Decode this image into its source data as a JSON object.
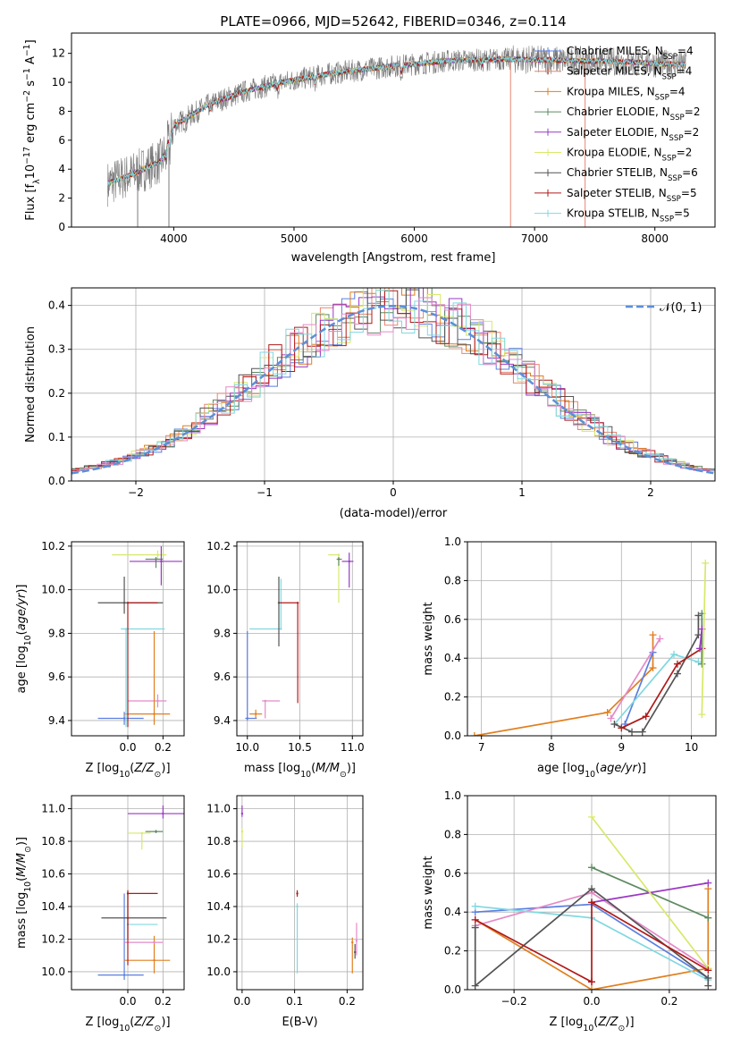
{
  "figure": {
    "title": "PLATE=0966, MJD=52642, FIBERID=0346, z=0.114"
  },
  "legend_entries": [
    {
      "label": "Chabrier MILES, N_SSP=4",
      "color": "#5b7fe0"
    },
    {
      "label": "Salpeter MILES, N_SSP=4",
      "color": "#e8856f"
    },
    {
      "label": "Kroupa MILES, N_SSP=4",
      "color": "#e07f1f"
    },
    {
      "label": "Chabrier ELODIE, N_SSP=2",
      "color": "#5e8a62"
    },
    {
      "label": "Salpeter ELODIE, N_SSP=2",
      "color": "#9a38c4"
    },
    {
      "label": "Kroupa ELODIE, N_SSP=2",
      "color": "#d8e86a"
    },
    {
      "label": "Chabrier STELIB, N_SSP=6",
      "color": "#545454"
    },
    {
      "label": "Salpeter STELIB, N_SSP=5",
      "color": "#b01a1a"
    },
    {
      "label": "Kroupa STELIB, N_SSP=5",
      "color": "#80d8e0"
    }
  ],
  "chart_data": [
    {
      "id": "spectrum",
      "type": "line",
      "xlabel": "wavelength [Angstrom, rest frame]",
      "ylabel": "Flux [f_λ 10^-17 erg cm^-2 s^-1 A^-1]",
      "xlim": [
        3150,
        8500
      ],
      "ylim": [
        0,
        13.4
      ],
      "xticks": [
        4000,
        5000,
        6000,
        7000,
        8000
      ],
      "yticks": [
        0,
        2,
        4,
        6,
        8,
        10,
        12
      ],
      "grid": false,
      "legend_position": "right",
      "x_range_data": [
        3450,
        8260
      ],
      "continuum": [
        [
          3450,
          3.0
        ],
        [
          3700,
          3.8
        ],
        [
          3900,
          4.6
        ],
        [
          4000,
          7.0
        ],
        [
          4300,
          8.5
        ],
        [
          4600,
          9.4
        ],
        [
          4900,
          10.0
        ],
        [
          5300,
          10.6
        ],
        [
          5800,
          11.1
        ],
        [
          6300,
          11.5
        ],
        [
          6800,
          11.6
        ],
        [
          7300,
          11.5
        ],
        [
          7800,
          11.4
        ],
        [
          8260,
          11.2
        ]
      ],
      "series": [
        {
          "color": "#7a7a7a",
          "role": "data"
        },
        {
          "color": "#5b7fe0"
        },
        {
          "color": "#e8856f"
        },
        {
          "color": "#e07f1f"
        },
        {
          "color": "#5e8a62"
        },
        {
          "color": "#9a38c4"
        },
        {
          "color": "#d8e86a"
        },
        {
          "color": "#545454"
        },
        {
          "color": "#b01a1a"
        },
        {
          "color": "#80d8e0"
        }
      ]
    },
    {
      "id": "residuals",
      "type": "area",
      "xlabel": "(data-model)/error",
      "ylabel": "Normed distribution",
      "xlim": [
        -2.5,
        2.5
      ],
      "ylim": [
        0,
        0.44
      ],
      "xticks": [
        -2,
        -1,
        0,
        1,
        2
      ],
      "xtick_labels": [
        "−2",
        "−1",
        "0",
        "1",
        "2"
      ],
      "yticks": [
        0.0,
        0.1,
        0.2,
        0.3,
        0.4
      ],
      "grid": true,
      "legend": "𝒩(0, 1)",
      "legend_position": "top-right",
      "normal_curve_color": "#5b8fd8",
      "histogram_colors": [
        "#5b7fe0",
        "#e8856f",
        "#e07f1f",
        "#5e8a62",
        "#9a38c4",
        "#d8e86a",
        "#545454",
        "#b01a1a",
        "#80d8e0",
        "#e38ac8"
      ],
      "bin_width": 0.1
    },
    {
      "id": "age_vs_Z",
      "type": "scatter",
      "xlabel": "Z [log10(Z/Z⊙)]",
      "ylabel": "age  [log10(age/yr)]",
      "xlim": [
        -0.32,
        0.32
      ],
      "ylim": [
        9.33,
        10.22
      ],
      "xticks": [
        0.0,
        0.2
      ],
      "yticks": [
        9.4,
        9.6,
        9.8,
        10.0,
        10.2
      ],
      "grid": true,
      "points": [
        {
          "x": -0.02,
          "y": 9.41,
          "xerr": [
            0.15,
            0.11
          ],
          "yerr": [
            0.03,
            0.03
          ],
          "color": "#5b7fe0"
        },
        {
          "x": 0.17,
          "y": 9.49,
          "xerr": [
            0.17,
            0.05
          ],
          "yerr": [
            0.03,
            0.03
          ],
          "color": "#e38ac8"
        },
        {
          "x": 0.15,
          "y": 9.43,
          "xerr": [
            0.17,
            0.09
          ],
          "yerr": [
            0.05,
            0.38
          ],
          "color": "#e07f1f"
        },
        {
          "x": -0.01,
          "y": 9.82,
          "xerr": [
            0.03,
            0.22
          ],
          "yerr": [
            0.45,
            0.0
          ],
          "color": "#80d8e0"
        },
        {
          "x": -0.02,
          "y": 9.94,
          "xerr": [
            0.15,
            0.22
          ],
          "yerr": [
            0.05,
            0.12
          ],
          "color": "#545454"
        },
        {
          "x": 0.0,
          "y": 9.94,
          "xerr": [
            0.0,
            0.17
          ],
          "yerr": [
            0.57,
            0.0
          ],
          "color": "#b01a1a"
        },
        {
          "x": 0.17,
          "y": 10.16,
          "xerr": [
            0.26,
            0.05
          ],
          "yerr": [
            0.02,
            0.02
          ],
          "color": "#d8e86a"
        },
        {
          "x": 0.16,
          "y": 10.14,
          "xerr": [
            0.06,
            0.04
          ],
          "yerr": [
            0.04,
            0.01
          ],
          "color": "#5e8a62"
        },
        {
          "x": 0.19,
          "y": 10.13,
          "xerr": [
            0.18,
            0.12
          ],
          "yerr": [
            0.11,
            0.07
          ],
          "color": "#9a38c4"
        }
      ]
    },
    {
      "id": "age_vs_mass",
      "type": "scatter",
      "xlabel": "mass [log10(M/M⊙)]",
      "ylabel": "",
      "xlim": [
        9.9,
        11.1
      ],
      "ylim": [
        9.33,
        10.22
      ],
      "xticks": [
        10.0,
        10.5,
        11.0
      ],
      "yticks": [
        9.4,
        9.6,
        9.8,
        10.0,
        10.2
      ],
      "grid": true,
      "points": [
        {
          "x": 10.0,
          "y": 9.41,
          "xerr": [
            0.02,
            0.09
          ],
          "yerr": [
            0.01,
            0.4
          ],
          "color": "#5b7fe0"
        },
        {
          "x": 10.08,
          "y": 9.43,
          "xerr": [
            0.06,
            0.06
          ],
          "yerr": [
            0.02,
            0.02
          ],
          "color": "#e07f1f"
        },
        {
          "x": 10.17,
          "y": 9.49,
          "xerr": [
            0.03,
            0.14
          ],
          "yerr": [
            0.08,
            0.0
          ],
          "color": "#e38ac8"
        },
        {
          "x": 10.32,
          "y": 9.82,
          "xerr": [
            0.3,
            0.0
          ],
          "yerr": [
            0.0,
            0.23
          ],
          "color": "#80d8e0"
        },
        {
          "x": 10.3,
          "y": 9.94,
          "xerr": [
            0.0,
            0.0
          ],
          "yerr": [
            0.2,
            0.12
          ],
          "color": "#545454"
        },
        {
          "x": 10.48,
          "y": 9.94,
          "xerr": [
            0.18,
            0.0
          ],
          "yerr": [
            0.46,
            0.0
          ],
          "color": "#b01a1a"
        },
        {
          "x": 10.87,
          "y": 10.16,
          "xerr": [
            0.1,
            0.0
          ],
          "yerr": [
            0.22,
            0.0
          ],
          "color": "#d8e86a"
        },
        {
          "x": 10.87,
          "y": 10.14,
          "xerr": [
            0.02,
            0.03
          ],
          "yerr": [
            0.03,
            0.01
          ],
          "color": "#5e8a62"
        },
        {
          "x": 10.97,
          "y": 10.13,
          "xerr": [
            0.07,
            0.04
          ],
          "yerr": [
            0.12,
            0.04
          ],
          "color": "#9a38c4"
        }
      ]
    },
    {
      "id": "weight_vs_age",
      "type": "line",
      "xlabel": "age  [log10(age/yr)]",
      "ylabel": "mass weight",
      "xlim": [
        6.8,
        10.35
      ],
      "ylim": [
        0.0,
        1.0
      ],
      "xticks": [
        7,
        8,
        9,
        10
      ],
      "yticks": [
        0.0,
        0.2,
        0.4,
        0.6,
        0.8,
        1.0
      ],
      "grid": true,
      "series": [
        {
          "color": "#e07f1f",
          "x": [
            6.9,
            8.8,
            9.45,
            9.45
          ],
          "y": [
            0.0,
            0.12,
            0.35,
            0.52
          ]
        },
        {
          "color": "#5b7fe0",
          "x": [
            9.05,
            9.45
          ],
          "y": [
            0.06,
            0.43
          ]
        },
        {
          "color": "#e38ac8",
          "x": [
            8.85,
            9.55
          ],
          "y": [
            0.09,
            0.5
          ]
        },
        {
          "color": "#80d8e0",
          "x": [
            8.9,
            9.75,
            10.1
          ],
          "y": [
            0.06,
            0.42,
            0.38
          ]
        },
        {
          "color": "#545454",
          "x": [
            8.9,
            9.15,
            9.3,
            9.8,
            10.1,
            10.1
          ],
          "y": [
            0.06,
            0.02,
            0.02,
            0.32,
            0.52,
            0.62
          ]
        },
        {
          "color": "#b01a1a",
          "x": [
            9.0,
            9.35,
            9.8,
            10.15
          ],
          "y": [
            0.04,
            0.1,
            0.37,
            0.45
          ]
        },
        {
          "color": "#5e8a62",
          "x": [
            10.15,
            10.15
          ],
          "y": [
            0.37,
            0.63
          ]
        },
        {
          "color": "#9a38c4",
          "x": [
            10.12,
            10.15
          ],
          "y": [
            0.45,
            0.55
          ]
        },
        {
          "color": "#d8e86a",
          "x": [
            10.15,
            10.2
          ],
          "y": [
            0.11,
            0.89
          ]
        }
      ]
    },
    {
      "id": "mass_vs_Z",
      "type": "scatter",
      "xlabel": "Z [log10(Z/Z⊙)]",
      "ylabel": "mass [log10(M/M⊙)]",
      "xlim": [
        -0.32,
        0.32
      ],
      "ylim": [
        9.89,
        11.08
      ],
      "xticks": [
        0.0,
        0.2
      ],
      "yticks": [
        10.0,
        10.2,
        10.4,
        10.6,
        10.8,
        11.0
      ],
      "grid": true,
      "points": [
        {
          "x": -0.02,
          "y": 9.98,
          "xerr": [
            0.15,
            0.11
          ],
          "yerr": [
            0.03,
            0.5
          ],
          "color": "#5b7fe0"
        },
        {
          "x": 0.15,
          "y": 10.07,
          "xerr": [
            0.17,
            0.09
          ],
          "yerr": [
            0.08,
            0.15
          ],
          "color": "#e07f1f"
        },
        {
          "x": 0.15,
          "y": 10.18,
          "xerr": [
            0.17,
            0.05
          ],
          "yerr": [
            0.0,
            0.0
          ],
          "color": "#e38ac8"
        },
        {
          "x": 0.0,
          "y": 10.29,
          "xerr": [
            0.0,
            0.17
          ],
          "yerr": [
            0.0,
            0.0
          ],
          "color": "#80d8e0"
        },
        {
          "x": 0.0,
          "y": 10.33,
          "xerr": [
            0.15,
            0.22
          ],
          "yerr": [
            0.13,
            0.16
          ],
          "color": "#545454"
        },
        {
          "x": 0.0,
          "y": 10.48,
          "xerr": [
            0.0,
            0.17
          ],
          "yerr": [
            0.44,
            0.02
          ],
          "color": "#b01a1a"
        },
        {
          "x": 0.08,
          "y": 10.85,
          "xerr": [
            0.08,
            0.05
          ],
          "yerr": [
            0.1,
            0.0
          ],
          "color": "#d8e86a"
        },
        {
          "x": 0.16,
          "y": 10.86,
          "xerr": [
            0.06,
            0.04
          ],
          "yerr": [
            0.01,
            0.01
          ],
          "color": "#5e8a62"
        },
        {
          "x": 0.2,
          "y": 10.97,
          "xerr": [
            0.2,
            0.12
          ],
          "yerr": [
            0.03,
            0.05
          ],
          "color": "#9a38c4"
        }
      ]
    },
    {
      "id": "mass_vs_ebv",
      "type": "scatter",
      "xlabel": "E(B-V)",
      "ylabel": "",
      "xlim": [
        -0.01,
        0.23
      ],
      "ylim": [
        9.89,
        11.08
      ],
      "xticks": [
        0.0,
        0.1,
        0.2
      ],
      "yticks": [
        10.0,
        10.2,
        10.4,
        10.6,
        10.8,
        11.0
      ],
      "grid": true,
      "points": [
        {
          "x": 0.0,
          "y": 10.86,
          "xerr": [
            0.0,
            0.0
          ],
          "yerr": [
            0.1,
            0.02
          ],
          "color": "#d8e86a"
        },
        {
          "x": 0.0,
          "y": 10.97,
          "xerr": [
            0.0,
            0.0
          ],
          "yerr": [
            0.02,
            0.05
          ],
          "color": "#9a38c4"
        },
        {
          "x": 0.105,
          "y": 10.48,
          "xerr": [
            0.0,
            0.0
          ],
          "yerr": [
            0.02,
            0.02
          ],
          "color": "#b01a1a"
        },
        {
          "x": 0.105,
          "y": 10.4,
          "xerr": [
            0.0,
            0.0
          ],
          "yerr": [
            0.41,
            0.02
          ],
          "color": "#80d8e0"
        },
        {
          "x": 0.21,
          "y": 10.18,
          "xerr": [
            0.0,
            0.0
          ],
          "yerr": [
            0.19,
            0.03
          ],
          "color": "#e07f1f"
        },
        {
          "x": 0.215,
          "y": 10.12,
          "xerr": [
            0.0,
            0.0
          ],
          "yerr": [
            0.04,
            0.05
          ],
          "color": "#545454"
        },
        {
          "x": 0.218,
          "y": 10.19,
          "xerr": [
            0.0,
            0.0
          ],
          "yerr": [
            0.09,
            0.11
          ],
          "color": "#e38ac8"
        }
      ]
    },
    {
      "id": "weight_vs_Z",
      "type": "line",
      "xlabel": "Z [log10(Z/Z⊙)]",
      "ylabel": "mass weight",
      "xlim": [
        -0.32,
        0.32
      ],
      "ylim": [
        0.0,
        1.0
      ],
      "xticks": [
        -0.2,
        0.0,
        0.2
      ],
      "xtick_labels": [
        "−0.2",
        "0.0",
        "0.2"
      ],
      "yticks": [
        0.0,
        0.2,
        0.4,
        0.6,
        0.8,
        1.0
      ],
      "grid": true,
      "series": [
        {
          "color": "#5b7fe0",
          "x": [
            -0.3,
            0.0,
            0.3
          ],
          "y": [
            0.4,
            0.44,
            0.06
          ]
        },
        {
          "color": "#e38ac8",
          "x": [
            -0.3,
            0.0,
            0.3
          ],
          "y": [
            0.33,
            0.5,
            0.11
          ]
        },
        {
          "color": "#e07f1f",
          "x": [
            -0.3,
            0.0,
            0.3,
            0.3
          ],
          "y": [
            0.36,
            0.0,
            0.11,
            0.52
          ]
        },
        {
          "color": "#80d8e0",
          "x": [
            -0.3,
            0.0,
            0.3
          ],
          "y": [
            0.43,
            0.37,
            0.05
          ]
        },
        {
          "color": "#5e8a62",
          "x": [
            0.0,
            0.3
          ],
          "y": [
            0.63,
            0.37
          ]
        },
        {
          "color": "#9a38c4",
          "x": [
            0.0,
            0.3
          ],
          "y": [
            0.45,
            0.55
          ]
        },
        {
          "color": "#d8e86a",
          "x": [
            0.0,
            0.3
          ],
          "y": [
            0.89,
            0.11
          ]
        },
        {
          "color": "#545454",
          "x": [
            -0.3,
            -0.3,
            0.0,
            0.3,
            0.3
          ],
          "y": [
            0.32,
            0.02,
            0.52,
            0.06,
            0.02
          ]
        },
        {
          "color": "#b01a1a",
          "x": [
            -0.3,
            0.0,
            0.0,
            0.0,
            0.3
          ],
          "y": [
            0.36,
            0.04,
            0.04,
            0.45,
            0.1
          ]
        }
      ]
    }
  ]
}
